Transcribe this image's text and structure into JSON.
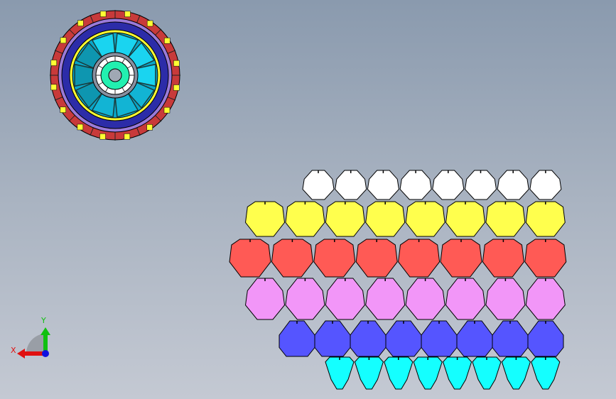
{
  "viewport": {
    "background_top": "#8a9aae",
    "background_bottom": "#c4c9d3"
  },
  "assembly": {
    "name": "wheel-assembly",
    "colors": {
      "outer_ring": "#c83a3a",
      "clips": "#ffff33",
      "inner_ring": "#2c2ca8",
      "spoke_panels": "#1ac8e8",
      "hub": "#22f0b0",
      "hub_ring": "#ffffff"
    }
  },
  "part_rows": [
    {
      "name": "white-parts",
      "color": "#ffffff",
      "count": 8
    },
    {
      "name": "yellow-parts",
      "color": "#ffff4d",
      "count": 8
    },
    {
      "name": "red-parts",
      "color": "#ff5a55",
      "count": 8
    },
    {
      "name": "pink-parts",
      "color": "#f296f8",
      "count": 8
    },
    {
      "name": "blue-parts",
      "color": "#5555ff",
      "count": 8
    },
    {
      "name": "cyan-parts",
      "color": "#14ffff",
      "count": 8
    }
  ],
  "triad": {
    "x_label": "X",
    "y_label": "Y",
    "x_color": "#e01010",
    "y_color": "#10c010",
    "z_color": "#1010e0"
  }
}
